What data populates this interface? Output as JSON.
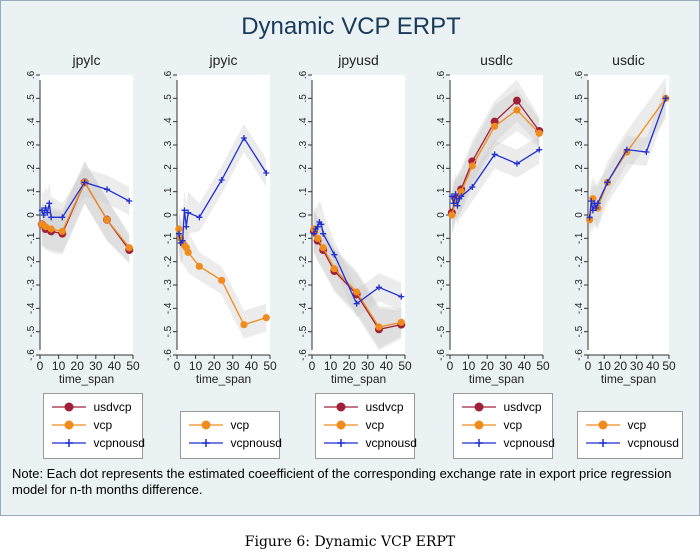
{
  "title": "Dynamic VCP ERPT",
  "note": "Note: Each dot represents the estimated coeefficient of the corresponding exchange rate in export price regression model for n-th months difference.",
  "caption": "Figure 6: Dynamic VCP ERPT",
  "colors": {
    "usdvcp": "#a0203a",
    "vcp": "#f08c1e",
    "vcpnousd": "#1f2fd0",
    "ci": "#c8c8c8",
    "panel_bg": "#eaf2f3",
    "plot_bg": "#ffffff"
  },
  "chart_data": [
    {
      "type": "line",
      "title": "jpylc",
      "xlabel": "time_span",
      "xlim": [
        0,
        50
      ],
      "ylim": [
        -0.6,
        0.6
      ],
      "xticks": [
        "0",
        "10",
        "20",
        "30",
        "40",
        "50"
      ],
      "yticks": [
        "-.6",
        "-.5",
        "-.4",
        "-.3",
        "-.2",
        "-.1",
        "0",
        ".1",
        ".2",
        ".3",
        ".4",
        ".5",
        ".6"
      ],
      "series": [
        {
          "name": "usdvcp",
          "x": [
            1,
            3,
            6,
            12,
            24,
            36,
            48
          ],
          "y": [
            -0.04,
            -0.06,
            -0.07,
            -0.08,
            0.14,
            -0.02,
            -0.15
          ]
        },
        {
          "name": "vcp",
          "x": [
            1,
            3,
            6,
            12,
            24,
            36,
            48
          ],
          "y": [
            -0.04,
            -0.05,
            -0.06,
            -0.07,
            0.14,
            -0.02,
            -0.14
          ]
        },
        {
          "name": "vcpnousd",
          "x": [
            1,
            2,
            3,
            4,
            5,
            6,
            12,
            24,
            36,
            48
          ],
          "y": [
            0.02,
            0.0,
            0.03,
            0.01,
            0.05,
            -0.01,
            -0.01,
            0.14,
            0.11,
            0.06
          ]
        }
      ],
      "legend": [
        "usdvcp",
        "vcp",
        "vcpnousd"
      ]
    },
    {
      "type": "line",
      "title": "jpyic",
      "xlabel": "time_span",
      "xlim": [
        0,
        50
      ],
      "ylim": [
        -0.6,
        0.6
      ],
      "xticks": [
        "0",
        "10",
        "20",
        "30",
        "40",
        "50"
      ],
      "yticks": [
        "-.6",
        "-.5",
        "-.4",
        "-.3",
        "-.2",
        "-.1",
        "0",
        ".1",
        ".2",
        ".3",
        ".4",
        ".5",
        ".6"
      ],
      "series": [
        {
          "name": "vcp",
          "x": [
            1,
            2,
            3,
            4,
            5,
            6,
            12,
            24,
            36,
            48
          ],
          "y": [
            -0.06,
            -0.1,
            -0.12,
            -0.13,
            -0.14,
            -0.16,
            -0.22,
            -0.28,
            -0.47,
            -0.44
          ]
        },
        {
          "name": "vcpnousd",
          "x": [
            1,
            2,
            3,
            4,
            5,
            6,
            12,
            24,
            36,
            48
          ],
          "y": [
            -0.08,
            -0.12,
            -0.11,
            0.02,
            -0.05,
            0.01,
            -0.01,
            0.15,
            0.33,
            0.18
          ]
        }
      ],
      "legend": [
        "vcp",
        "vcpnousd"
      ]
    },
    {
      "type": "line",
      "title": "jpyusd",
      "xlabel": "time_span",
      "xlim": [
        0,
        50
      ],
      "ylim": [
        -0.6,
        0.6
      ],
      "xticks": [
        "0",
        "10",
        "20",
        "30",
        "40",
        "50"
      ],
      "yticks": [
        "-.6",
        "-.5",
        "-.4",
        "-.3",
        "-.2",
        "-.1",
        "0",
        ".1",
        ".2",
        ".3",
        ".4",
        ".5",
        ".6"
      ],
      "series": [
        {
          "name": "usdvcp",
          "x": [
            1,
            3,
            6,
            12,
            24,
            36,
            48
          ],
          "y": [
            -0.07,
            -0.11,
            -0.15,
            -0.24,
            -0.34,
            -0.49,
            -0.47
          ]
        },
        {
          "name": "vcp",
          "x": [
            1,
            3,
            6,
            12,
            24,
            36,
            48
          ],
          "y": [
            -0.06,
            -0.1,
            -0.14,
            -0.23,
            -0.33,
            -0.48,
            -0.46
          ]
        },
        {
          "name": "vcpnousd",
          "x": [
            1,
            2,
            3,
            4,
            5,
            6,
            12,
            24,
            36,
            48
          ],
          "y": [
            -0.08,
            -0.06,
            -0.05,
            -0.03,
            -0.04,
            -0.08,
            -0.17,
            -0.38,
            -0.31,
            -0.35
          ]
        }
      ],
      "legend": [
        "usdvcp",
        "vcp",
        "vcpnousd"
      ]
    },
    {
      "type": "line",
      "title": "usdlc",
      "xlabel": "time_span",
      "xlim": [
        0,
        50
      ],
      "ylim": [
        -0.6,
        0.6
      ],
      "xticks": [
        "0",
        "10",
        "20",
        "30",
        "40",
        "50"
      ],
      "yticks": [
        "-.6",
        "-.5",
        "-.4",
        "-.3",
        "-.2",
        "-.1",
        "0",
        ".1",
        ".2",
        ".3",
        ".4",
        ".5",
        ".6"
      ],
      "series": [
        {
          "name": "usdvcp",
          "x": [
            1,
            3,
            6,
            12,
            24,
            36,
            48
          ],
          "y": [
            0.01,
            0.07,
            0.11,
            0.23,
            0.4,
            0.49,
            0.36
          ]
        },
        {
          "name": "vcp",
          "x": [
            1,
            3,
            6,
            12,
            24,
            36,
            48
          ],
          "y": [
            0.0,
            0.06,
            0.1,
            0.21,
            0.38,
            0.45,
            0.35
          ]
        },
        {
          "name": "vcpnousd",
          "x": [
            1,
            2,
            3,
            4,
            5,
            6,
            12,
            24,
            36,
            48
          ],
          "y": [
            0.08,
            0.05,
            0.09,
            0.04,
            0.07,
            0.08,
            0.12,
            0.26,
            0.22,
            0.28
          ]
        }
      ],
      "legend": [
        "usdvcp",
        "vcp",
        "vcpnousd"
      ]
    },
    {
      "type": "line",
      "title": "usdic",
      "xlabel": "time_span",
      "xlim": [
        0,
        50
      ],
      "ylim": [
        -0.6,
        0.6
      ],
      "xticks": [
        "0",
        "10",
        "20",
        "30",
        "40",
        "50"
      ],
      "yticks": [
        "-.6",
        "-.5",
        "-.4",
        "-.3",
        "-.2",
        "-.1",
        "0",
        ".1",
        ".2",
        ".3",
        ".4",
        ".5",
        ".6"
      ],
      "series": [
        {
          "name": "vcp",
          "x": [
            1,
            3,
            6,
            12,
            24,
            48
          ],
          "y": [
            -0.02,
            0.07,
            0.03,
            0.14,
            0.27,
            0.5
          ]
        },
        {
          "name": "vcpnousd",
          "x": [
            1,
            2,
            3,
            4,
            5,
            6,
            12,
            24,
            36,
            48
          ],
          "y": [
            -0.01,
            0.06,
            0.02,
            0.05,
            0.03,
            0.05,
            0.14,
            0.28,
            0.27,
            0.5
          ]
        }
      ],
      "legend": [
        "vcp",
        "vcpnousd"
      ]
    }
  ]
}
